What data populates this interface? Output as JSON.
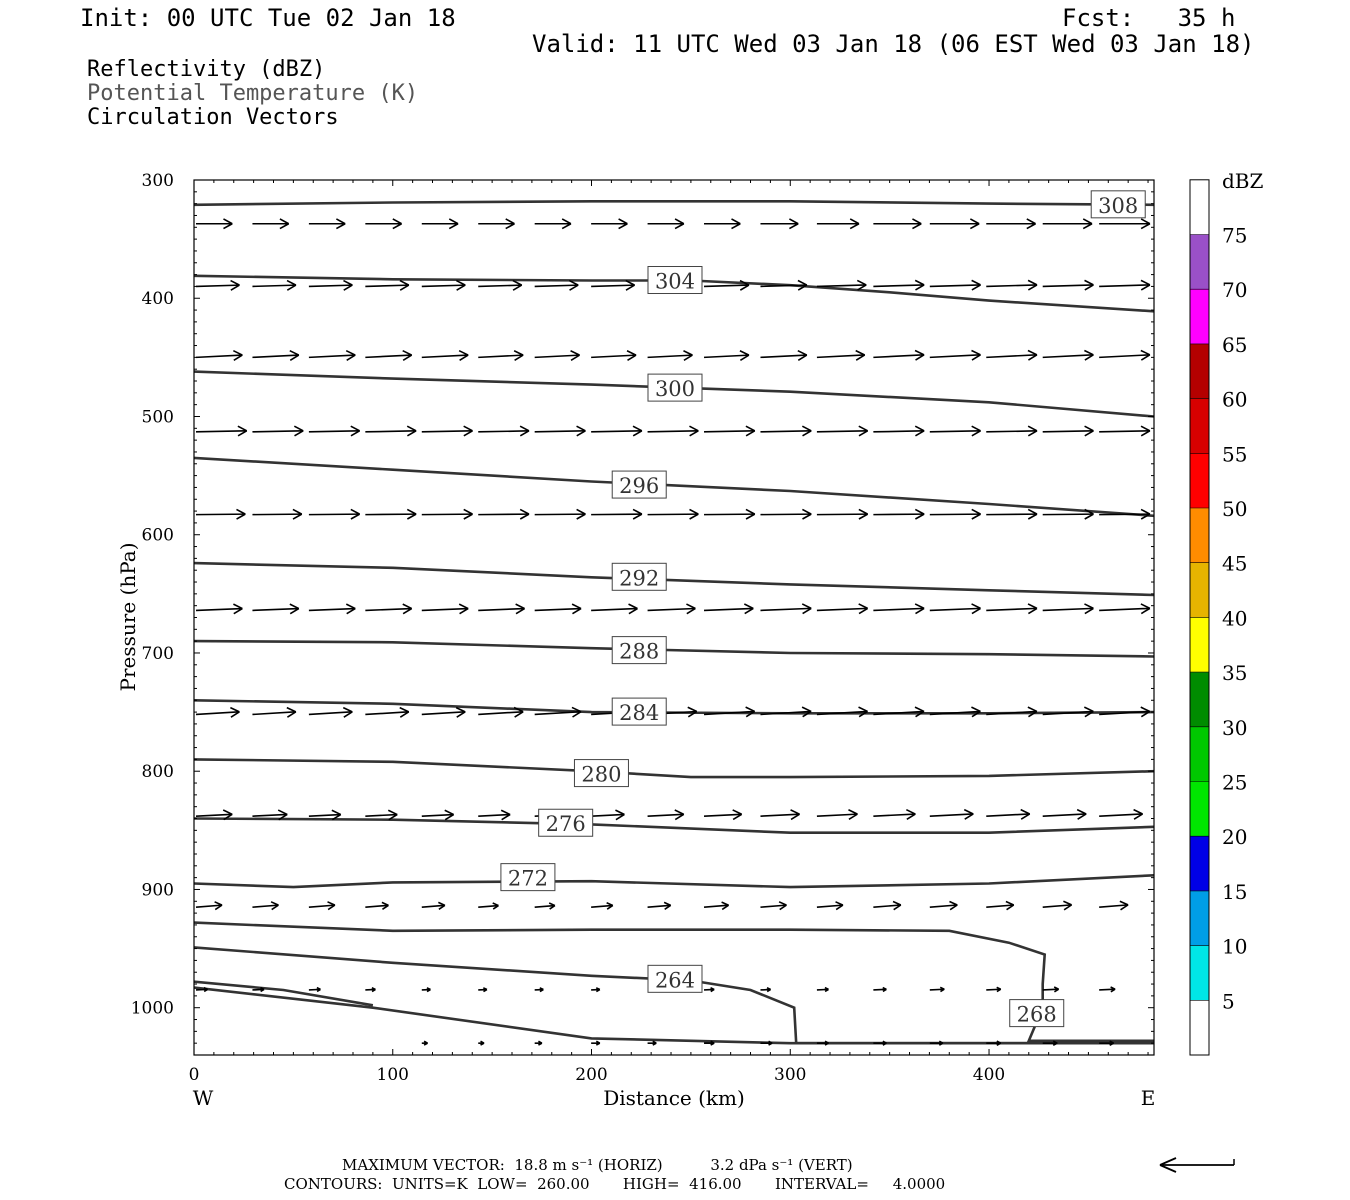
{
  "header": {
    "init": "Init: 00 UTC Tue 02 Jan 18",
    "fcst": "Fcst:   35 h",
    "valid": "Valid: 11 UTC Wed 03 Jan 18 (06 EST Wed 03 Jan 18)"
  },
  "legend": {
    "reflectivity": "Reflectivity (dBZ)",
    "theta": "Potential Temperature (K)",
    "vectors": "Circulation Vectors"
  },
  "footer": {
    "max_vector": "MAXIMUM VECTOR:  18.8 m s⁻¹ (HORIZ)          3.2 dPa s⁻¹ (VERT)",
    "contours": "CONTOURS:  UNITS=K  LOW=  260.00       HIGH=  416.00       INTERVAL=     4.0000"
  },
  "chart_data": {
    "type": "line",
    "subtype": "vertical cross-section (pressure vs distance) with potential temperature isentropes and circulation vectors",
    "xlabel": "Distance (km)",
    "ylabel": "Pressure (hPa)",
    "xlim": [
      0,
      483
    ],
    "ylim": [
      1040,
      300
    ],
    "y_inverted": true,
    "xticks": [
      0,
      100,
      200,
      300,
      400
    ],
    "yticks": [
      300,
      400,
      500,
      600,
      700,
      800,
      900,
      1000
    ],
    "x_end_labels": {
      "left": "W",
      "right": "E"
    },
    "grid": false,
    "isentropes": [
      {
        "theta": "308",
        "label": "308",
        "label_at": [
          465,
          321
        ],
        "points": [
          [
            0,
            321
          ],
          [
            100,
            319
          ],
          [
            200,
            318
          ],
          [
            300,
            318
          ],
          [
            400,
            320
          ],
          [
            483,
            321
          ]
        ]
      },
      {
        "theta": "304",
        "label": "304",
        "label_at": [
          242,
          385
        ],
        "points": [
          [
            0,
            381
          ],
          [
            100,
            384
          ],
          [
            200,
            385
          ],
          [
            250,
            385
          ],
          [
            300,
            389
          ],
          [
            350,
            395
          ],
          [
            400,
            402
          ],
          [
            483,
            411
          ]
        ]
      },
      {
        "theta": "300",
        "label": "300",
        "label_at": [
          242,
          476
        ],
        "points": [
          [
            0,
            462
          ],
          [
            100,
            468
          ],
          [
            200,
            473
          ],
          [
            300,
            479
          ],
          [
            400,
            488
          ],
          [
            483,
            500
          ]
        ]
      },
      {
        "theta": "296",
        "label": "296",
        "label_at": [
          224,
          558
        ],
        "points": [
          [
            0,
            535
          ],
          [
            100,
            545
          ],
          [
            200,
            555
          ],
          [
            300,
            563
          ],
          [
            400,
            574
          ],
          [
            483,
            584
          ]
        ]
      },
      {
        "theta": "292",
        "label": "292",
        "label_at": [
          224,
          636
        ],
        "points": [
          [
            0,
            624
          ],
          [
            100,
            628
          ],
          [
            200,
            636
          ],
          [
            300,
            642
          ],
          [
            400,
            647
          ],
          [
            483,
            651
          ]
        ]
      },
      {
        "theta": "288",
        "label": "288",
        "label_at": [
          224,
          698
        ],
        "points": [
          [
            0,
            690
          ],
          [
            100,
            691
          ],
          [
            200,
            696
          ],
          [
            300,
            700
          ],
          [
            400,
            701
          ],
          [
            483,
            703
          ]
        ]
      },
      {
        "theta": "284",
        "label": "284",
        "label_at": [
          224,
          750
        ],
        "points": [
          [
            0,
            740
          ],
          [
            100,
            743
          ],
          [
            200,
            750
          ],
          [
            300,
            751
          ],
          [
            400,
            751
          ],
          [
            483,
            750
          ]
        ]
      },
      {
        "theta": "280",
        "label": "280",
        "label_at": [
          205,
          802
        ],
        "points": [
          [
            0,
            790
          ],
          [
            100,
            792
          ],
          [
            200,
            800
          ],
          [
            250,
            805
          ],
          [
            300,
            805
          ],
          [
            400,
            804
          ],
          [
            483,
            800
          ]
        ]
      },
      {
        "theta": "276",
        "label": "276",
        "label_at": [
          187,
          844
        ],
        "points": [
          [
            0,
            840
          ],
          [
            100,
            841
          ],
          [
            200,
            845
          ],
          [
            300,
            852
          ],
          [
            400,
            852
          ],
          [
            483,
            847
          ]
        ]
      },
      {
        "theta": "272",
        "label": "272",
        "label_at": [
          168,
          890
        ],
        "points": [
          [
            0,
            895
          ],
          [
            50,
            898
          ],
          [
            100,
            894
          ],
          [
            200,
            893
          ],
          [
            300,
            898
          ],
          [
            400,
            895
          ],
          [
            483,
            888
          ]
        ]
      },
      {
        "theta": "268",
        "label": "268",
        "label_at": [
          424,
          1005
        ],
        "points": [
          [
            0,
            928
          ],
          [
            100,
            935
          ],
          [
            200,
            934
          ],
          [
            300,
            934
          ],
          [
            380,
            935
          ],
          [
            410,
            945
          ],
          [
            428,
            955
          ],
          [
            427,
            980
          ],
          [
            427,
            1000
          ],
          [
            420,
            1028
          ],
          [
            483,
            1028
          ]
        ]
      },
      {
        "theta": "264",
        "label": "264",
        "label_at": [
          242,
          976
        ],
        "points": [
          [
            0,
            949
          ],
          [
            100,
            962
          ],
          [
            200,
            973
          ],
          [
            250,
            977
          ],
          [
            280,
            985
          ],
          [
            302,
            1000
          ],
          [
            303,
            1030
          ],
          [
            483,
            1030
          ]
        ]
      },
      {
        "theta": "260",
        "label": "",
        "label_at": null,
        "points": [
          [
            0,
            983
          ],
          [
            90,
            1000
          ],
          [
            200,
            1026
          ],
          [
            300,
            1030
          ],
          [
            483,
            1030
          ]
        ]
      },
      {
        "theta": "260",
        "label": "",
        "label_at": null,
        "points": [
          [
            0,
            978
          ],
          [
            45,
            985
          ],
          [
            90,
            998
          ]
        ]
      }
    ],
    "vectors": {
      "reference": {
        "horiz": "18.8 m s⁻¹",
        "vert": "3.2 dPa s⁻¹"
      },
      "rows": [
        {
          "p": 337,
          "heading": [
            1.0,
            0.0
          ],
          "len": [
            25,
            25,
            25,
            25,
            25,
            25,
            25,
            25,
            25,
            25,
            26,
            29,
            33,
            34,
            34,
            34,
            35
          ]
        },
        {
          "p": 390,
          "heading": [
            1.0,
            -0.03
          ],
          "len": [
            30,
            30,
            30,
            30,
            30,
            30,
            30,
            30,
            30,
            31,
            32,
            34,
            35,
            35,
            35,
            35,
            35
          ]
        },
        {
          "p": 450,
          "heading": [
            1.0,
            -0.05
          ],
          "len": [
            32,
            32,
            32,
            32,
            32,
            31,
            31,
            31,
            31,
            31,
            32,
            33,
            35,
            35,
            35,
            35,
            35
          ]
        },
        {
          "p": 513,
          "heading": [
            1.0,
            -0.02
          ],
          "len": [
            35,
            35,
            35,
            35,
            35,
            35,
            35,
            35,
            35,
            35,
            35,
            35,
            35,
            35,
            35,
            35,
            35
          ]
        },
        {
          "p": 583,
          "heading": [
            1.0,
            -0.01
          ],
          "len": [
            34,
            34,
            35,
            35,
            35,
            35,
            35,
            35,
            35,
            35,
            35,
            35,
            35,
            35,
            35,
            35,
            35
          ]
        },
        {
          "p": 664,
          "heading": [
            1.0,
            -0.04
          ],
          "len": [
            32,
            32,
            32,
            32,
            32,
            32,
            32,
            32,
            33,
            34,
            35,
            35,
            35,
            35,
            35,
            35,
            35
          ]
        },
        {
          "p": 752,
          "heading": [
            1.0,
            -0.06
          ],
          "len": [
            30,
            30,
            30,
            30,
            30,
            31,
            32,
            33,
            34,
            35,
            35,
            35,
            35,
            35,
            35,
            35,
            35
          ]
        },
        {
          "p": 838,
          "heading": [
            1.0,
            -0.05
          ],
          "len": [
            25,
            24,
            22,
            22,
            22,
            22,
            22,
            23,
            25,
            26,
            27,
            28,
            29,
            30,
            30,
            30,
            30
          ]
        },
        {
          "p": 915,
          "heading": [
            1.0,
            -0.08
          ],
          "len": [
            18,
            18,
            18,
            16,
            16,
            14,
            14,
            15,
            16,
            17,
            18,
            18,
            19,
            19,
            19,
            20,
            20
          ]
        },
        {
          "p": 985,
          "heading": [
            1.0,
            -0.05
          ],
          "len": [
            8,
            8,
            8,
            7,
            6,
            6,
            6,
            6,
            6,
            7,
            7,
            8,
            9,
            10,
            10,
            11,
            11
          ]
        },
        {
          "p": 1030,
          "heading": [
            1.0,
            0.0
          ],
          "len": [
            0,
            0,
            0,
            0,
            4,
            4,
            5,
            6,
            6,
            7,
            8,
            8,
            9,
            9,
            10,
            10,
            10
          ]
        }
      ]
    },
    "colorbar": {
      "label": "dBZ",
      "levels": [
        "5",
        "10",
        "15",
        "20",
        "25",
        "30",
        "35",
        "40",
        "45",
        "50",
        "55",
        "60",
        "65",
        "70",
        "75"
      ],
      "colors": [
        "#ffffff",
        "#00e6e6",
        "#009ee6",
        "#0000e6",
        "#00e600",
        "#00c800",
        "#008c00",
        "#ffff00",
        "#e6b400",
        "#ff8c00",
        "#ff0000",
        "#d70000",
        "#b40000",
        "#ff00ff",
        "#9a50c8",
        "#ffffff"
      ]
    },
    "reflectivity_shading": "none"
  }
}
